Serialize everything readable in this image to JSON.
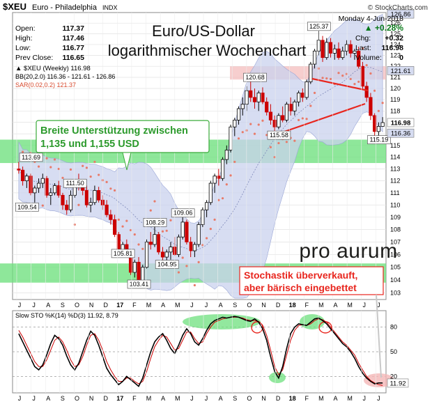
{
  "header": {
    "symbol": "$XEU",
    "name": "Euro - Philadelphia",
    "exchange": "INDX",
    "copyright": "© StockCharts.com",
    "date": "Monday  4-Jun-2018",
    "pct_change": "▲ +0.28%",
    "chg_label": "Chg:",
    "chg_value": "+0.32",
    "last_label": "Last:",
    "last_value": "116.98",
    "volume_label": "Volume:",
    "volume_value": "0",
    "open_label": "Open:",
    "open_value": "117.37",
    "high_label": "High:",
    "high_value": "117.46",
    "low_label": "Low:",
    "low_value": "116.77",
    "prevclose_label": "Prev Close:",
    "prevclose_value": "116.65"
  },
  "title": {
    "line1": "Euro/US-Dollar",
    "line2": "logarithmischer Wochenchart"
  },
  "legend": {
    "price": "▲ $XEU (Weekly) 116.98",
    "bb": "BB(20,2.0) 116.36 - 121.61 - 126.86",
    "sar": "SAR(0.02,0.2) 121.37"
  },
  "annotations": {
    "support_line1": "Breite Unterstützung zwischen",
    "support_line2": "1,135 und 1,155 USD",
    "stoch_line1": "Stochastik überverkauft,",
    "stoch_line2": "aber bärisch eingebettet",
    "logo": "pro aurum"
  },
  "colors": {
    "up": "#ffffff",
    "down": "#cc0000",
    "bb_fill": "#c9d2ee",
    "support": "#6ee07e",
    "sar": "#e87b6a",
    "trend": "#e8261e",
    "stoch_k": "#000000",
    "stoch_d": "#cc0000"
  },
  "chart_data": [
    {
      "type": "candlestick",
      "title": "$XEU Euro - Philadelphia INDX (Weekly)",
      "scale": "log",
      "ylim": [
        102.5,
        127
      ],
      "y_ticks": [
        103,
        104,
        105,
        106,
        107,
        108,
        109,
        110,
        111,
        112,
        113,
        114,
        115,
        116,
        117,
        118,
        119,
        120,
        121,
        122,
        123,
        124,
        125,
        126
      ],
      "x_ticks": [
        "J",
        "J",
        "A",
        "S",
        "O",
        "N",
        "D",
        "17",
        "F",
        "M",
        "A",
        "M",
        "J",
        "J",
        "A",
        "S",
        "O",
        "N",
        "D",
        "18",
        "F",
        "M",
        "A",
        "M",
        "J",
        "J"
      ],
      "candles": [
        [
          113.0,
          113.6,
          112.6,
          112.9
        ],
        [
          112.9,
          113.2,
          111.6,
          112.0
        ],
        [
          112.0,
          112.6,
          111.4,
          112.4
        ],
        [
          112.4,
          112.6,
          110.8,
          111.0
        ],
        [
          111.0,
          111.6,
          110.2,
          111.4
        ],
        [
          111.4,
          112.2,
          111.0,
          111.8
        ],
        [
          111.8,
          112.6,
          111.4,
          112.2
        ],
        [
          112.2,
          112.4,
          110.6,
          110.8
        ],
        [
          110.8,
          111.4,
          110.0,
          111.0
        ],
        [
          111.0,
          111.8,
          110.8,
          111.6
        ],
        [
          111.6,
          112.0,
          110.6,
          110.8
        ],
        [
          110.8,
          111.0,
          109.6,
          110.0
        ],
        [
          110.0,
          110.4,
          109.2,
          109.6
        ],
        [
          109.6,
          111.2,
          109.4,
          110.8
        ],
        [
          110.8,
          112.0,
          110.6,
          111.8
        ],
        [
          111.8,
          112.6,
          111.2,
          111.6
        ],
        [
          111.6,
          112.0,
          110.8,
          111.2
        ],
        [
          111.2,
          111.6,
          109.8,
          110.0
        ],
        [
          110.0,
          110.6,
          109.4,
          110.2
        ],
        [
          110.2,
          111.6,
          110.0,
          111.2
        ],
        [
          111.2,
          111.5,
          110.2,
          110.4
        ],
        [
          110.4,
          110.8,
          109.6,
          110.0
        ],
        [
          110.0,
          110.4,
          109.0,
          109.2
        ],
        [
          109.2,
          109.6,
          108.4,
          108.8
        ],
        [
          108.8,
          109.2,
          107.4,
          107.6
        ],
        [
          107.6,
          107.8,
          105.8,
          106.2
        ],
        [
          106.2,
          107.0,
          106.0,
          106.8
        ],
        [
          106.8,
          107.2,
          105.8,
          106.0
        ],
        [
          106.0,
          106.2,
          104.4,
          104.6
        ],
        [
          104.6,
          105.6,
          104.2,
          105.4
        ],
        [
          105.4,
          105.8,
          103.4,
          103.9
        ],
        [
          103.9,
          105.2,
          103.6,
          105.0
        ],
        [
          105.0,
          107.2,
          104.9,
          107.0
        ],
        [
          107.0,
          107.8,
          106.4,
          106.8
        ],
        [
          106.8,
          108.3,
          106.6,
          107.6
        ],
        [
          107.6,
          107.8,
          106.0,
          106.2
        ],
        [
          106.2,
          106.6,
          105.2,
          105.8
        ],
        [
          105.8,
          106.4,
          104.9,
          106.2
        ],
        [
          106.2,
          107.0,
          105.6,
          106.6
        ],
        [
          106.6,
          107.4,
          105.9,
          106.0
        ],
        [
          106.0,
          107.6,
          105.8,
          107.4
        ],
        [
          107.4,
          109.1,
          107.2,
          108.6
        ],
        [
          108.6,
          108.8,
          106.8,
          107.0
        ],
        [
          107.0,
          107.4,
          105.8,
          106.3
        ],
        [
          106.3,
          107.0,
          105.8,
          106.8
        ],
        [
          106.8,
          108.6,
          106.6,
          108.4
        ],
        [
          108.4,
          109.8,
          108.2,
          109.6
        ],
        [
          109.6,
          110.4,
          109.0,
          110.2
        ],
        [
          110.2,
          112.0,
          110.0,
          111.8
        ],
        [
          111.8,
          112.6,
          111.0,
          112.4
        ],
        [
          112.4,
          113.0,
          111.6,
          112.2
        ],
        [
          112.2,
          114.0,
          112.0,
          113.8
        ],
        [
          113.8,
          115.0,
          113.4,
          114.6
        ],
        [
          114.6,
          116.8,
          114.4,
          116.6
        ],
        [
          116.6,
          117.4,
          115.8,
          117.2
        ],
        [
          117.2,
          118.4,
          116.8,
          118.2
        ],
        [
          118.2,
          119.2,
          117.6,
          118.6
        ],
        [
          118.6,
          120.2,
          118.0,
          119.8
        ],
        [
          119.8,
          120.6,
          118.8,
          119.2
        ],
        [
          119.2,
          120.0,
          118.2,
          118.8
        ],
        [
          118.8,
          119.8,
          118.0,
          119.6
        ],
        [
          119.6,
          120.1,
          118.6,
          118.8
        ],
        [
          118.8,
          119.2,
          117.6,
          117.9
        ],
        [
          117.9,
          118.6,
          116.8,
          117.2
        ],
        [
          117.2,
          117.6,
          116.2,
          116.6
        ],
        [
          116.6,
          117.8,
          116.4,
          117.6
        ],
        [
          117.6,
          118.4,
          117.0,
          117.2
        ],
        [
          117.2,
          118.8,
          117.0,
          118.6
        ],
        [
          118.6,
          119.2,
          117.6,
          118.0
        ],
        [
          118.0,
          119.0,
          117.6,
          118.8
        ],
        [
          118.8,
          119.8,
          118.4,
          119.6
        ],
        [
          119.6,
          120.0,
          118.8,
          119.2
        ],
        [
          119.2,
          120.8,
          119.0,
          120.6
        ],
        [
          120.6,
          122.4,
          120.4,
          122.2
        ],
        [
          122.2,
          123.6,
          121.8,
          123.4
        ],
        [
          123.4,
          125.37,
          123.0,
          124.4
        ],
        [
          124.4,
          124.8,
          122.4,
          122.8
        ],
        [
          122.8,
          124.6,
          122.6,
          124.2
        ],
        [
          124.2,
          124.6,
          122.8,
          123.2
        ],
        [
          123.2,
          124.0,
          122.6,
          123.6
        ],
        [
          123.6,
          124.2,
          122.6,
          122.8
        ],
        [
          122.8,
          123.8,
          122.6,
          123.4
        ],
        [
          123.4,
          124.4,
          123.0,
          124.0
        ],
        [
          124.0,
          124.4,
          122.8,
          123.2
        ],
        [
          123.2,
          123.6,
          122.6,
          123.4
        ],
        [
          123.4,
          123.8,
          121.8,
          122.0
        ],
        [
          122.0,
          122.4,
          120.0,
          120.2
        ],
        [
          120.2,
          120.6,
          118.8,
          119.2
        ],
        [
          119.2,
          119.6,
          117.2,
          117.6
        ],
        [
          117.6,
          117.8,
          115.8,
          116.2
        ],
        [
          116.2,
          117.0,
          115.19,
          116.65
        ],
        [
          116.65,
          117.46,
          116.77,
          116.98
        ]
      ],
      "bb": {
        "upper_last": 126.86,
        "mid_last": 121.61,
        "lower_last": 116.36
      },
      "price_labels": [
        {
          "text": "113.69",
          "week": 3,
          "value": 113.69
        },
        {
          "text": "111.50",
          "week": 14,
          "value": 111.5
        },
        {
          "text": "109.54",
          "week": 2,
          "value": 109.54
        },
        {
          "text": "105.81",
          "week": 26,
          "value": 105.81
        },
        {
          "text": "103.41",
          "week": 30,
          "value": 103.41
        },
        {
          "text": "108.29",
          "week": 34,
          "value": 108.29
        },
        {
          "text": "109.06",
          "week": 41,
          "value": 109.06
        },
        {
          "text": "104.95",
          "week": 37,
          "value": 104.95
        },
        {
          "text": "120.68",
          "week": 59,
          "value": 120.68
        },
        {
          "text": "115.58",
          "week": 65,
          "value": 115.58
        },
        {
          "text": "125.37",
          "week": 75,
          "value": 125.37
        },
        {
          "text": "115.19",
          "week": 90,
          "value": 115.19
        }
      ],
      "right_labels": [
        "126.86",
        "121.61",
        "116.98",
        "116.36"
      ],
      "support_zones": [
        [
          113.5,
          115.5
        ],
        [
          103.8,
          105.3
        ]
      ],
      "resistance_zone": [
        120.8,
        122.0
      ]
    },
    {
      "type": "line",
      "title": "Slow STO %K(14) %D(3) 11.92, 8.79",
      "ylim": [
        0,
        100
      ],
      "y_ticks": [
        20,
        50,
        80
      ],
      "last_label": "11.92",
      "series": [
        {
          "name": "%K",
          "values": [
            72,
            62,
            52,
            42,
            32,
            28,
            34,
            46,
            60,
            70,
            66,
            58,
            45,
            34,
            28,
            36,
            50,
            64,
            75,
            70,
            58,
            44,
            30,
            22,
            16,
            10,
            14,
            20,
            16,
            12,
            8,
            18,
            34,
            50,
            62,
            68,
            72,
            64,
            54,
            48,
            58,
            70,
            78,
            72,
            62,
            58,
            66,
            76,
            84,
            88,
            90,
            92,
            91,
            92,
            93,
            92,
            90,
            88,
            87,
            90,
            86,
            78,
            64,
            44,
            26,
            18,
            32,
            54,
            72,
            80,
            84,
            83,
            82,
            86,
            90,
            91,
            88,
            84,
            78,
            72,
            66,
            60,
            56,
            50,
            42,
            32,
            24,
            18,
            14,
            11,
            12,
            12
          ]
        },
        {
          "name": "%D",
          "values": [
            76,
            68,
            58,
            48,
            38,
            32,
            32,
            40,
            52,
            64,
            68,
            62,
            52,
            40,
            32,
            34,
            44,
            58,
            70,
            72,
            64,
            52,
            38,
            28,
            20,
            14,
            14,
            18,
            18,
            14,
            11,
            14,
            26,
            42,
            56,
            64,
            70,
            68,
            60,
            52,
            54,
            64,
            74,
            74,
            66,
            60,
            62,
            72,
            80,
            86,
            88,
            90,
            91,
            92,
            92,
            92,
            91,
            89,
            88,
            88,
            87,
            82,
            70,
            52,
            32,
            22,
            28,
            46,
            64,
            76,
            82,
            83,
            82,
            84,
            88,
            90,
            89,
            86,
            80,
            74,
            68,
            62,
            58,
            52,
            46,
            36,
            28,
            20,
            15,
            12,
            10,
            9
          ]
        }
      ]
    }
  ]
}
